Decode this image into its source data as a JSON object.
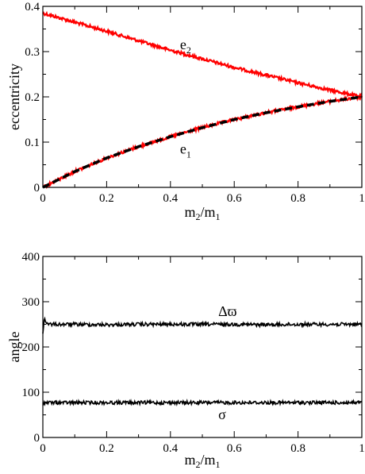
{
  "chart_data": [
    {
      "type": "line",
      "xlabel_main": "m",
      "xlabel_sub2": "2",
      "xlabel_slash": "/m",
      "xlabel_sub1": "1",
      "ylabel": "eccentricity",
      "xlim": [
        0,
        1
      ],
      "ylim": [
        0,
        0.4
      ],
      "xticks": [
        "0",
        "0.2",
        "0.4",
        "0.6",
        "0.8",
        "1"
      ],
      "yticks": [
        "0",
        "0.1",
        "0.2",
        "0.3",
        "0.4"
      ],
      "grid": false,
      "annotations": [
        {
          "text": "e",
          "sub": "2",
          "x": 0.43,
          "y": 0.305
        },
        {
          "text": "e",
          "sub": "1",
          "x": 0.43,
          "y": 0.075
        }
      ],
      "series": [
        {
          "color": "#ff0000",
          "style": "noisy",
          "x": [
            0,
            0.1,
            0.2,
            0.3,
            0.4,
            0.5,
            0.6,
            0.7,
            0.8,
            0.9,
            1.0
          ],
          "y": [
            0.385,
            0.365,
            0.345,
            0.324,
            0.303,
            0.284,
            0.265,
            0.248,
            0.231,
            0.215,
            0.2
          ]
        },
        {
          "color": "#ff0000",
          "style": "noisy",
          "x": [
            0,
            0.1,
            0.2,
            0.3,
            0.4,
            0.5,
            0.6,
            0.7,
            0.8,
            0.9,
            1.0
          ],
          "y": [
            0.0,
            0.035,
            0.065,
            0.09,
            0.112,
            0.132,
            0.15,
            0.165,
            0.178,
            0.19,
            0.2
          ]
        },
        {
          "color": "#000000",
          "style": "dashed",
          "x": [
            0,
            0.1,
            0.2,
            0.3,
            0.4,
            0.5,
            0.6,
            0.7,
            0.8,
            0.9,
            1.0
          ],
          "y": [
            0.0,
            0.035,
            0.065,
            0.09,
            0.112,
            0.132,
            0.15,
            0.165,
            0.178,
            0.19,
            0.2
          ]
        }
      ]
    },
    {
      "type": "line",
      "xlabel_main": "m",
      "xlabel_sub2": "2",
      "xlabel_slash": "/m",
      "xlabel_sub1": "1",
      "ylabel": "angle",
      "xlim": [
        0,
        1
      ],
      "ylim": [
        0,
        400
      ],
      "xticks": [
        "0",
        "0.2",
        "0.4",
        "0.6",
        "0.8",
        "1"
      ],
      "yticks": [
        "0",
        "100",
        "200",
        "300",
        "400"
      ],
      "grid": false,
      "annotations": [
        {
          "text": "Δϖ",
          "x": 0.55,
          "y": 268
        },
        {
          "text": "σ",
          "x": 0.55,
          "y": 40
        }
      ],
      "series": [
        {
          "color": "#000000",
          "style": "noisy",
          "x": [
            0,
            0.005,
            0.01,
            0.02,
            0.1,
            0.2,
            0.3,
            0.4,
            0.5,
            0.6,
            0.7,
            0.8,
            0.9,
            1.0
          ],
          "y": [
            230,
            265,
            255,
            250,
            250,
            249,
            250,
            250,
            250,
            250,
            249,
            250,
            250,
            250
          ]
        },
        {
          "color": "#000000",
          "style": "noisy",
          "x": [
            0,
            0.1,
            0.2,
            0.3,
            0.4,
            0.5,
            0.6,
            0.7,
            0.8,
            0.9,
            1.0
          ],
          "y": [
            77,
            77,
            77,
            77,
            77,
            77,
            77,
            77,
            77,
            77,
            77
          ]
        }
      ]
    }
  ]
}
